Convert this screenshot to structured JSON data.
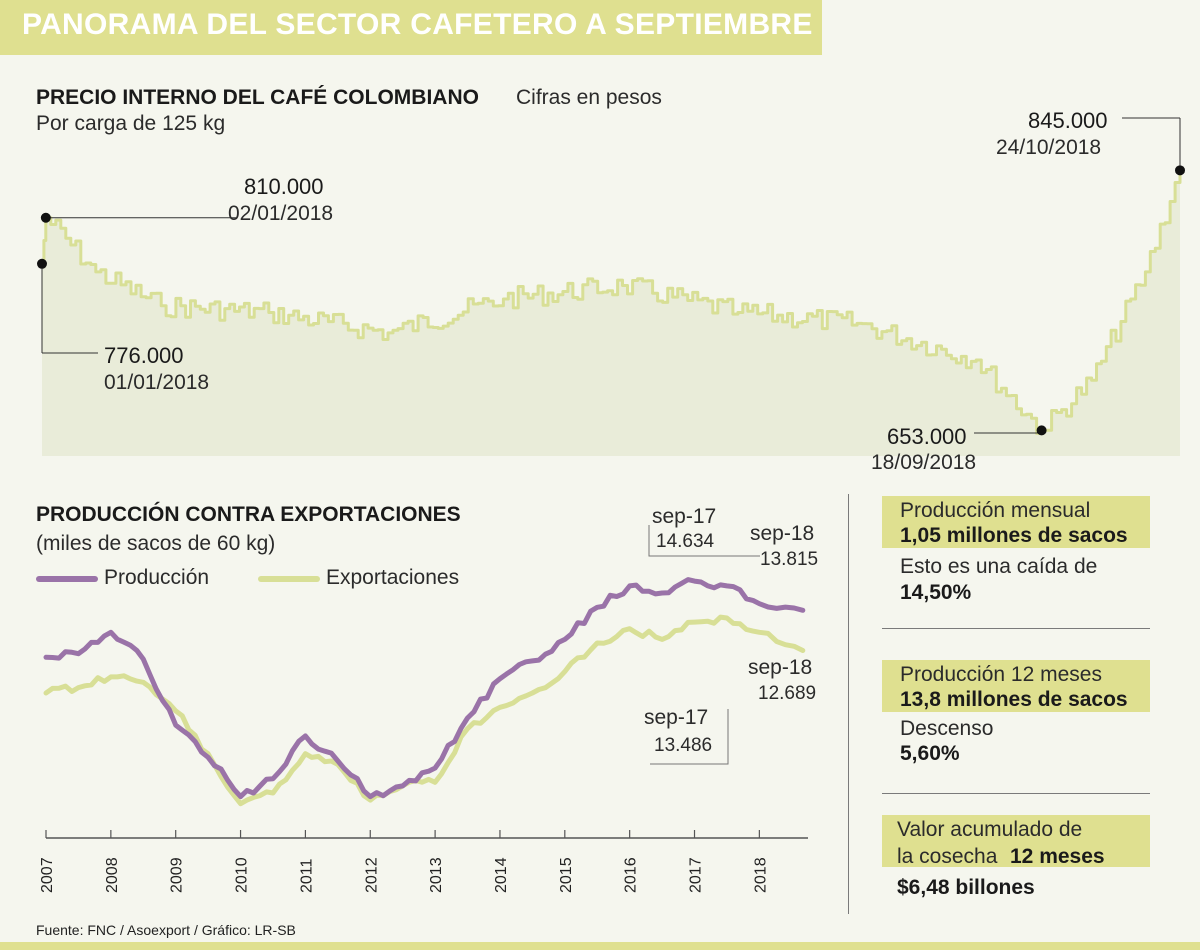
{
  "header": {
    "title": "PANORAMA DEL SECTOR CAFETERO A SEPTIEMBRE"
  },
  "colors": {
    "accent": "#dfe090",
    "production": "#9a73a8",
    "exports": "#d8df96",
    "price_line": "#d8df96",
    "price_fill": "#e9ecd9"
  },
  "price_chart": {
    "title": "PRECIO INTERNO DEL CAFÉ COLOMBIANO",
    "subtitle": "Cifras en pesos",
    "unit_note": "Por carga de 125 kg",
    "annotations": {
      "start": {
        "value": "776.000",
        "date": "01/01/2018"
      },
      "peak": {
        "value": "810.000",
        "date": "02/01/2018"
      },
      "low": {
        "value": "653.000",
        "date": "18/09/2018"
      },
      "last": {
        "value": "845.000",
        "date": "24/10/2018"
      }
    }
  },
  "production_chart": {
    "title": "PRODUCCIÓN CONTRA EXPORTACIONES",
    "unit_note": "(miles de sacos de 60 kg)",
    "legend": {
      "production": "Producción",
      "exports": "Exportaciones"
    },
    "annotations": {
      "prod_sep17": {
        "label": "sep-17",
        "value": "14.634"
      },
      "prod_sep18": {
        "label": "sep-18",
        "value": "13.815"
      },
      "exp_sep17": {
        "label": "sep-17",
        "value": "13.486"
      },
      "exp_sep18": {
        "label": "sep-18",
        "value": "12.689"
      }
    },
    "years": [
      "2007",
      "2008",
      "2009",
      "2010",
      "2011",
      "2012",
      "2013",
      "2014",
      "2015",
      "2016",
      "2017",
      "2018"
    ]
  },
  "stats": {
    "monthly": {
      "label": "Producción mensual",
      "value": "1,05 millones de sacos",
      "note": "Esto es una caída de",
      "note_value": "14,50%"
    },
    "twelve_months": {
      "label": "Producción 12 meses",
      "value": "13,8 millones de sacos",
      "note": "Descenso",
      "note_value": "5,60%"
    },
    "harvest": {
      "label_line1": "Valor acumulado de",
      "label_line2": "la cosecha",
      "label_bold": "12 meses",
      "value": "$6,48 billones"
    }
  },
  "footer": {
    "source": "Fuente: FNC / Asoexport  / Gráfico: LR-SB"
  },
  "chart_data": [
    {
      "type": "line",
      "title": "PRECIO INTERNO DEL CAFÉ COLOMBIANO",
      "ylabel": "Cifras en pesos, por carga de 125 kg",
      "x_range": [
        "01/01/2018",
        "24/10/2018"
      ],
      "ylim": [
        640000,
        860000
      ],
      "series": [
        {
          "name": "Precio interno",
          "x": [
            "01/01/2018",
            "02/01/2018",
            "15/01/2018",
            "01/02/2018",
            "01/03/2018",
            "01/04/2018",
            "01/05/2018",
            "01/06/2018",
            "01/07/2018",
            "01/08/2018",
            "01/09/2018",
            "18/09/2018",
            "01/10/2018",
            "15/10/2018",
            "24/10/2018"
          ],
          "values": [
            776000,
            810000,
            770000,
            745000,
            740000,
            725000,
            750000,
            760000,
            740000,
            732000,
            705000,
            653000,
            690000,
            770000,
            845000
          ]
        }
      ]
    },
    {
      "type": "line",
      "title": "PRODUCCIÓN CONTRA EXPORTACIONES",
      "ylabel": "miles de sacos de 60 kg",
      "categories": [
        "2007",
        "2007.5",
        "2008",
        "2008.5",
        "2009",
        "2009.5",
        "2010",
        "2010.5",
        "2011",
        "2011.5",
        "2012",
        "2012.5",
        "2013",
        "2013.5",
        "2014",
        "2014.5",
        "2015",
        "2015.5",
        "2016",
        "2016.5",
        "2017",
        "2017.5",
        "2018",
        "2018.67"
      ],
      "series": [
        {
          "name": "Producción",
          "values": [
            12500,
            12600,
            13200,
            12450,
            10600,
            9700,
            8600,
            9100,
            10300,
            9600,
            8600,
            8900,
            9400,
            10800,
            11900,
            12400,
            13000,
            13900,
            14500,
            14300,
            14634,
            14500,
            14000,
            13815
          ]
        },
        {
          "name": "Exportaciones",
          "values": [
            11500,
            11650,
            11950,
            11800,
            11000,
            9800,
            8400,
            8700,
            9800,
            9500,
            8500,
            8900,
            9000,
            10500,
            11100,
            11500,
            12100,
            12900,
            13300,
            13000,
            13486,
            13600,
            13200,
            12689
          ]
        }
      ]
    }
  ]
}
